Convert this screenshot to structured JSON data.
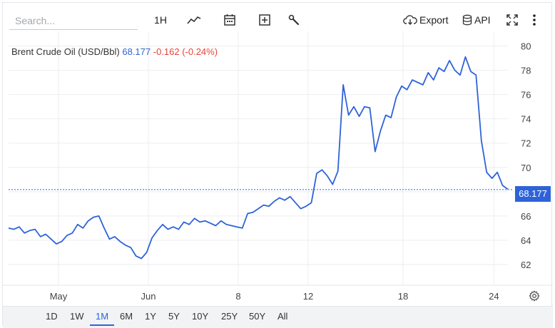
{
  "toolbar": {
    "search_placeholder": "Search...",
    "interval_label": "1H",
    "export_label": "Export",
    "api_label": "API"
  },
  "legend": {
    "name": "Brent Crude Oil (USD/Bbl)",
    "price": "68.177",
    "change": "-0.162 (-0.24%)"
  },
  "price_tag": "68.177",
  "colors": {
    "line": "#2e63d8",
    "negative": "#e0453a",
    "grid": "#eceef1"
  },
  "ranges": {
    "items": [
      "1D",
      "1W",
      "1M",
      "6M",
      "1Y",
      "5Y",
      "10Y",
      "25Y",
      "50Y",
      "All"
    ],
    "active": "1M"
  },
  "chart_data": {
    "type": "line",
    "x_ticks": [
      "May",
      "Jun",
      "8",
      "12",
      "18",
      "24"
    ],
    "y_ticks": [
      "62",
      "64",
      "66",
      "68",
      "70",
      "72",
      "74",
      "76",
      "78",
      "80"
    ],
    "ylim": [
      60.3,
      81.2
    ],
    "current_value": 68.177,
    "series": [
      {
        "values": [
          65.0,
          64.9,
          65.1,
          64.6,
          64.8,
          64.9,
          64.3,
          64.5,
          64.1,
          63.7,
          63.9,
          64.4,
          64.6,
          65.3,
          65.0,
          65.6,
          65.9,
          66.0,
          65.0,
          64.1,
          64.3,
          63.9,
          63.6,
          63.4,
          62.7,
          62.5,
          63.0,
          64.2,
          64.8,
          65.3,
          64.9,
          65.1,
          64.9,
          65.5,
          65.3,
          65.8,
          65.5,
          65.6,
          65.4,
          65.2,
          65.6,
          65.3,
          65.2,
          65.1,
          65.0,
          66.2,
          66.3,
          66.6,
          66.9,
          66.8,
          67.2,
          67.5,
          67.3,
          67.6,
          67.1,
          66.6,
          66.8,
          67.1,
          69.5,
          69.8,
          69.3,
          68.6,
          69.7,
          76.8,
          74.3,
          75.0,
          74.2,
          75.0,
          74.9,
          71.3,
          73.0,
          74.3,
          74.1,
          75.8,
          76.7,
          76.4,
          77.2,
          77.0,
          76.8,
          77.8,
          77.2,
          78.2,
          77.9,
          78.8,
          78.0,
          77.6,
          79.1,
          77.9,
          77.6,
          72.2,
          69.6,
          69.1,
          69.6,
          68.5,
          68.2
        ]
      }
    ]
  }
}
